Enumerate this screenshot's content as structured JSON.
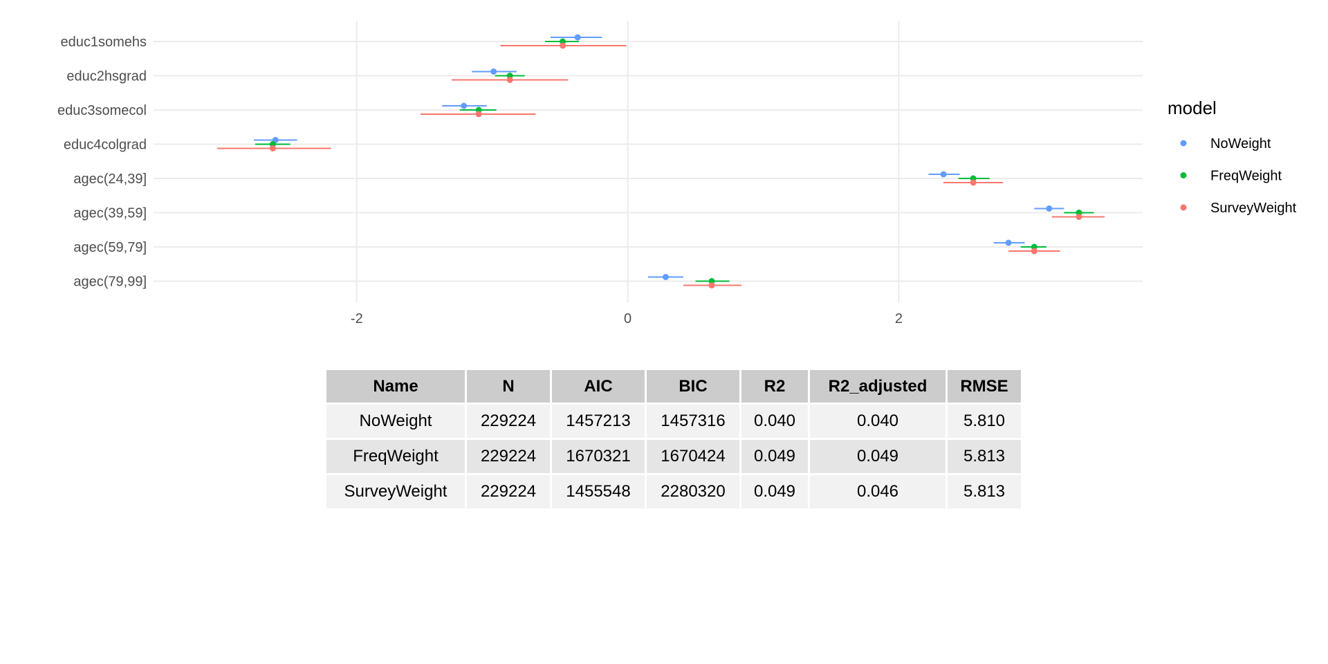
{
  "chart_data": {
    "type": "forest",
    "title": "",
    "xlabel": "",
    "ylabel": "",
    "xlim": [
      -3.5,
      3.8
    ],
    "x_ticks": [
      {
        "value": -2,
        "label": "-2"
      },
      {
        "value": 0,
        "label": "0"
      },
      {
        "value": 2,
        "label": "2"
      }
    ],
    "grid": true,
    "legend_position": "right",
    "legend_title": "model",
    "categories": [
      "educ1somehs",
      "educ2hsgrad",
      "educ3somecol",
      "educ4colgrad",
      "agec(24,39]",
      "agec(39,59]",
      "agec(59,79]",
      "agec(79,99]"
    ],
    "series": [
      {
        "name": "NoWeight",
        "color": "#619CFF",
        "estimate": [
          -0.37,
          -0.99,
          -1.21,
          -2.6,
          2.33,
          3.11,
          2.81,
          0.28
        ],
        "low": [
          -0.57,
          -1.15,
          -1.37,
          -2.76,
          2.22,
          3.0,
          2.7,
          0.15
        ],
        "high": [
          -0.19,
          -0.82,
          -1.04,
          -2.44,
          2.45,
          3.22,
          2.93,
          0.41
        ]
      },
      {
        "name": "FreqWeight",
        "color": "#00BA38",
        "estimate": [
          -0.48,
          -0.87,
          -1.1,
          -2.62,
          2.55,
          3.33,
          3.0,
          0.62
        ],
        "low": [
          -0.61,
          -0.98,
          -1.24,
          -2.75,
          2.44,
          3.22,
          2.9,
          0.5
        ],
        "high": [
          -0.36,
          -0.76,
          -0.97,
          -2.49,
          2.67,
          3.44,
          3.09,
          0.75
        ]
      },
      {
        "name": "SurveyWeight",
        "color": "#F8766D",
        "estimate": [
          -0.48,
          -0.87,
          -1.1,
          -2.62,
          2.55,
          3.33,
          3.0,
          0.62
        ],
        "low": [
          -0.94,
          -1.3,
          -1.53,
          -3.03,
          2.33,
          3.13,
          2.81,
          0.41
        ],
        "high": [
          -0.01,
          -0.44,
          -0.68,
          -2.19,
          2.77,
          3.52,
          3.19,
          0.84
        ]
      }
    ]
  },
  "table": {
    "headers": [
      "Name",
      "N",
      "AIC",
      "BIC",
      "R2",
      "R2_adjusted",
      "RMSE"
    ],
    "rows": [
      [
        "NoWeight",
        "229224",
        "1457213",
        "1457316",
        "0.040",
        "0.040",
        "5.810"
      ],
      [
        "FreqWeight",
        "229224",
        "1670321",
        "1670424",
        "0.049",
        "0.049",
        "5.813"
      ],
      [
        "SurveyWeight",
        "229224",
        "1455548",
        "2280320",
        "0.049",
        "0.046",
        "5.813"
      ]
    ]
  }
}
